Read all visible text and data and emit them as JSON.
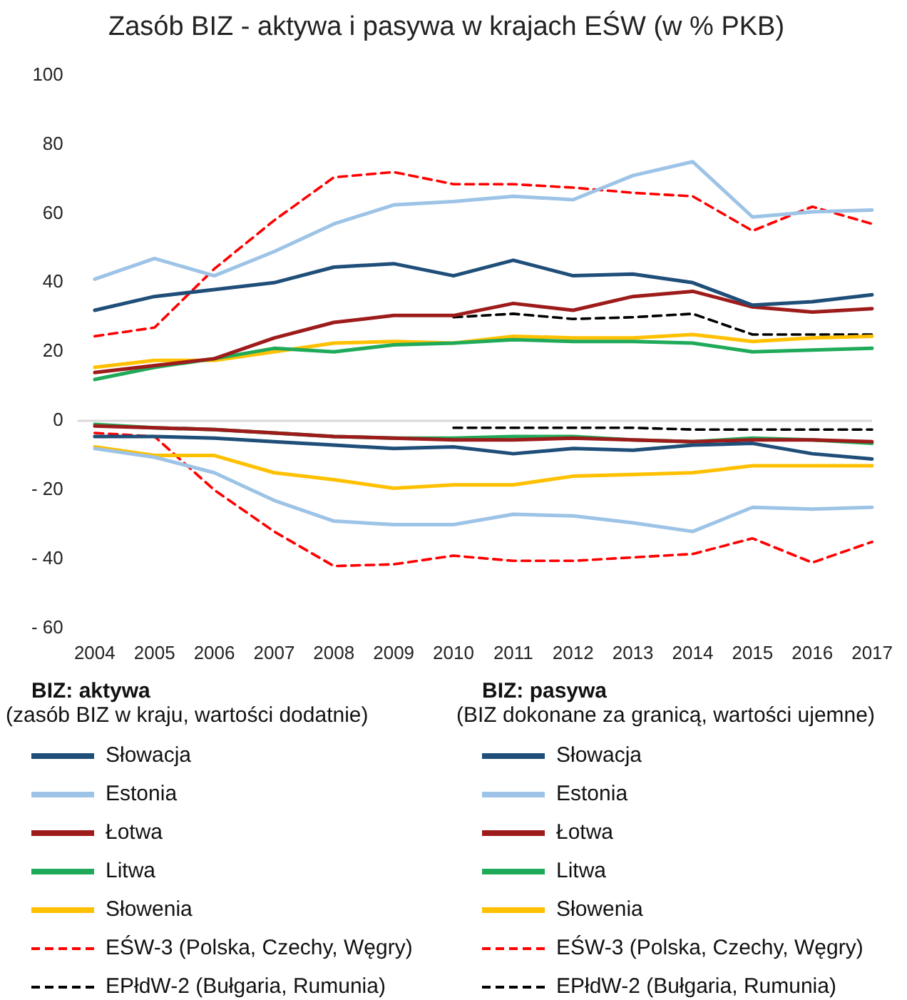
{
  "chart_data": {
    "type": "line",
    "title": "Zasób BIZ - aktywa i pasywa w krajach EŚW (w % PKB)",
    "categories": [
      "2004",
      "2005",
      "2006",
      "2007",
      "2008",
      "2009",
      "2010",
      "2011",
      "2012",
      "2013",
      "2014",
      "2015",
      "2016",
      "2017"
    ],
    "ylim": [
      -60,
      100
    ],
    "yticks": [
      100,
      80,
      60,
      40,
      20,
      {
        "value": 0,
        "label": "0"
      },
      {
        "value": -20,
        "label": "- 20"
      },
      {
        "value": -40,
        "label": "- 40"
      },
      {
        "value": -60,
        "label": "- 60"
      }
    ],
    "grid": false,
    "legend": "bottom",
    "marker": "none",
    "ref_lines": [
      {
        "axis": "y",
        "value": 0,
        "color": "#d9d9d9"
      }
    ],
    "annotations": [
      "BIZ: aktywa",
      "(zasób BIZ w kraju, wartości dodatnie)",
      "BIZ: pasywa",
      "(BIZ dokonane za granicą, wartości ujemne)"
    ],
    "series": [
      {
        "name": "Słowacja",
        "color": "#1f4e79",
        "line_style": "solid",
        "values": [
          32,
          36,
          38,
          40,
          44.5,
          45.5,
          42,
          46.5,
          42,
          42.5,
          40,
          33.5,
          34.5,
          36.5
        ]
      },
      {
        "name": "Estonia",
        "color": "#9dc3e6",
        "line_style": "solid",
        "values": [
          41,
          47,
          42,
          49,
          57,
          62.5,
          63.5,
          65,
          64,
          71,
          75,
          59,
          60.5,
          61
        ]
      },
      {
        "name": "Łotwa",
        "color": "#9e1b1b",
        "line_style": "solid",
        "values": [
          14,
          16,
          18,
          24,
          28.5,
          30.5,
          30.5,
          34,
          32,
          36,
          37.5,
          33,
          31.5,
          32.5
        ]
      },
      {
        "name": "Litwa",
        "color": "#1faa59",
        "line_style": "solid",
        "values": [
          12,
          15.5,
          18,
          21,
          20,
          22,
          22.5,
          23.5,
          23,
          23,
          22.5,
          20,
          20.5,
          21
        ]
      },
      {
        "name": "Słowenia",
        "color": "#ffc000",
        "line_style": "solid",
        "values": [
          15.5,
          17.5,
          17.5,
          20,
          22.5,
          23,
          22.5,
          24.5,
          24,
          24,
          25,
          23,
          24,
          24.5
        ]
      },
      {
        "name": "EŚW-3 (Polska, Czechy, Węgry)",
        "color": "#ff0000",
        "line_style": "dashed",
        "values": [
          24.5,
          27,
          44,
          58,
          70.5,
          72,
          68.5,
          68.5,
          67.5,
          66,
          65,
          55,
          62,
          57
        ]
      },
      {
        "name": "EPłdW-2 (Bułgaria, Rumunia)",
        "color": "#000000",
        "line_style": "dashed",
        "values": [
          null,
          null,
          null,
          null,
          null,
          null,
          30,
          31,
          29.5,
          30,
          31,
          25,
          25,
          25
        ]
      },
      {
        "name": "Słowacja",
        "color": "#1f4e79",
        "line_style": "solid",
        "values": [
          -4.5,
          -4.5,
          -5,
          -6,
          -7,
          -8,
          -7.5,
          -9.5,
          -8,
          -8.5,
          -7,
          -6.5,
          -9.5,
          -11
        ]
      },
      {
        "name": "Estonia",
        "color": "#9dc3e6",
        "line_style": "solid",
        "values": [
          -8,
          -10.5,
          -15,
          -23,
          -29,
          -30,
          -30,
          -27,
          -27.5,
          -29.5,
          -32,
          -25,
          -25.5,
          -25
        ]
      },
      {
        "name": "Łotwa",
        "color": "#9e1b1b",
        "line_style": "solid",
        "values": [
          -1.5,
          -2,
          -2.5,
          -3.5,
          -4.5,
          -5,
          -5.5,
          -5.5,
          -5,
          -5.5,
          -6,
          -5.5,
          -5.5,
          -6
        ]
      },
      {
        "name": "Litwa",
        "color": "#1faa59",
        "line_style": "solid",
        "values": [
          -1,
          -2,
          -2.5,
          -3.5,
          -4.5,
          -5,
          -5,
          -4.5,
          -4.5,
          -5.5,
          -6,
          -5,
          -5.5,
          -6.5
        ]
      },
      {
        "name": "Słowenia",
        "color": "#ffc000",
        "line_style": "solid",
        "values": [
          -7.5,
          -10,
          -10,
          -15,
          -17,
          -19.5,
          -18.5,
          -18.5,
          -16,
          -15.5,
          -15,
          -13,
          -13,
          -13
        ]
      },
      {
        "name": "EŚW-3 (Polska, Czechy, Węgry)",
        "color": "#ff0000",
        "line_style": "dashed",
        "values": [
          -3.5,
          -4.5,
          -20,
          -32,
          -42,
          -41.5,
          -39,
          -40.5,
          -40.5,
          -39.5,
          -38.5,
          -34,
          -41,
          -35
        ]
      },
      {
        "name": "EPłdW-2 (Bułgaria, Rumunia)",
        "color": "#000000",
        "line_style": "dashed",
        "values": [
          null,
          null,
          null,
          null,
          null,
          null,
          -2,
          -2,
          -2,
          -2,
          -2.5,
          -2.5,
          -2.5,
          -2.5
        ]
      }
    ]
  }
}
